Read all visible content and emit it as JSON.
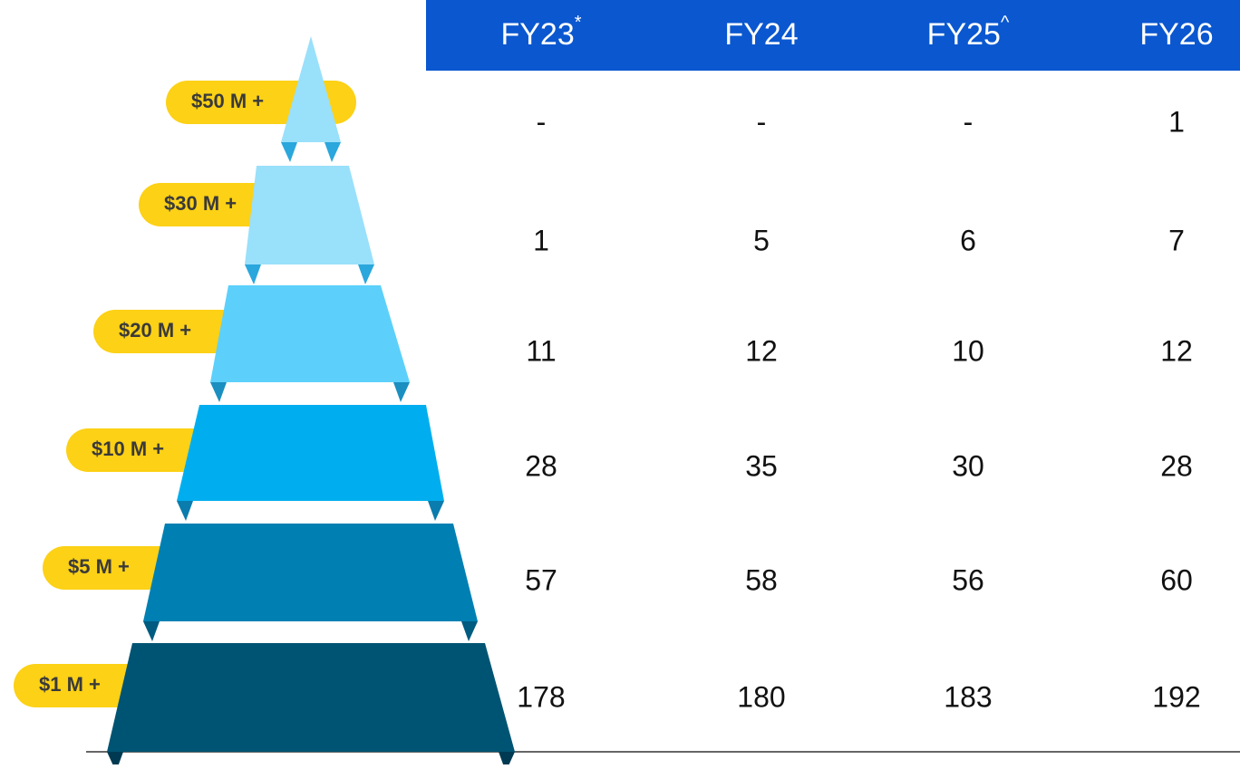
{
  "header": [
    {
      "text": "FY23",
      "sup": "*"
    },
    {
      "text": "FY24"
    },
    {
      "text": "FY25",
      "sup": "^"
    },
    {
      "text": "FY26"
    }
  ],
  "rows": [
    {
      "label": "$50 M +",
      "values": [
        "-",
        "-",
        "-",
        1
      ]
    },
    {
      "label": "$30 M +",
      "values": [
        1,
        5,
        6,
        7
      ]
    },
    {
      "label": "$20 M +",
      "values": [
        11,
        12,
        10,
        12
      ]
    },
    {
      "label": "$10 M +",
      "values": [
        28,
        35,
        30,
        28
      ]
    },
    {
      "label": "$5 M +",
      "values": [
        57,
        58,
        56,
        60
      ]
    },
    {
      "label": "$1 M +",
      "values": [
        178,
        180,
        183,
        192
      ]
    }
  ]
}
